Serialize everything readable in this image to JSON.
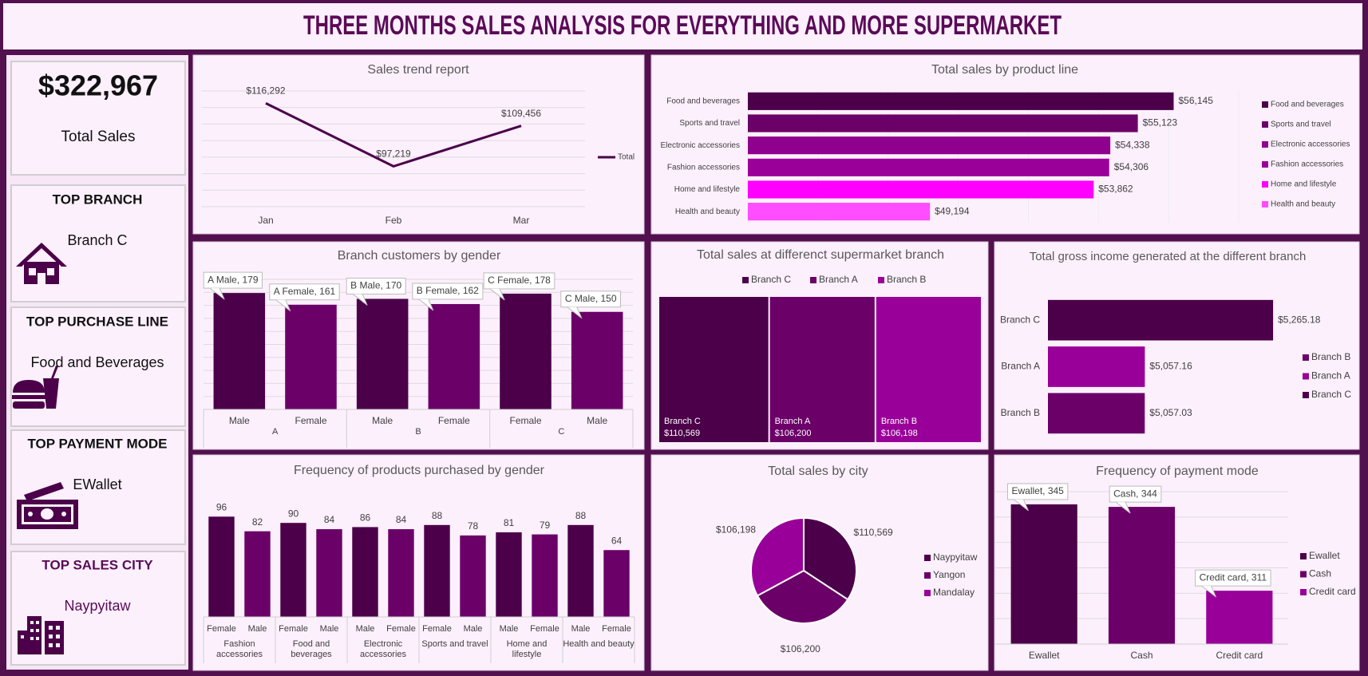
{
  "header": {
    "title": "THREE MONTHS SALES ANALYSIS FOR EVERYTHING AND MORE SUPERMARKET"
  },
  "kpis": [
    {
      "title": "$322,967",
      "text": "Total Sales"
    },
    {
      "title": "TOP BRANCH",
      "text": "Branch C"
    },
    {
      "title": "TOP PURCHASE LINE",
      "text": "Food and Beverages"
    },
    {
      "title": "TOP PAYMENT MODE",
      "text": "EWallet"
    },
    {
      "title": "TOP SALES CITY",
      "text": "Naypyitaw"
    }
  ],
  "chart_data": [
    {
      "type": "line",
      "title": "Sales trend report",
      "categories": [
        "Jan",
        "Feb",
        "Mar"
      ],
      "series": [
        {
          "name": "Total",
          "color": "#4b0049",
          "values": [
            116292,
            97219,
            109456
          ],
          "value_labels": [
            "$116,292",
            "$97,219",
            "$109,456"
          ]
        }
      ],
      "ylim": [
        85000,
        120000
      ],
      "yticks": [
        85000,
        90000,
        95000,
        100000,
        105000,
        110000,
        115000,
        120000
      ],
      "grid": true,
      "legend": "right"
    },
    {
      "type": "barh",
      "title": "Total sales by product line",
      "categories": [
        "Food and beverages",
        "Sports and travel",
        "Electronic accessories",
        "Fashion accessories",
        "Home and lifestyle",
        "Health and beauty"
      ],
      "values": [
        56145,
        55123,
        54338,
        54306,
        53862,
        49194
      ],
      "value_labels": [
        "$56,145",
        "$55,123",
        "$54,338",
        "$54,306",
        "$53,862",
        "$49,194"
      ],
      "colors": [
        "#4b0049",
        "#6b0068",
        "#90008f",
        "#9a0099",
        "#ff00ff",
        "#ff4dff"
      ],
      "xlim": [
        44000,
        58000
      ],
      "xticks": [
        44000,
        46000,
        48000,
        50000,
        52000,
        54000,
        56000,
        58000
      ],
      "grid": true,
      "legend": "right"
    },
    {
      "type": "bar",
      "title": "Branch customers by gender",
      "categories": [
        "Male",
        "Female",
        "Male",
        "Female",
        "Female",
        "Male"
      ],
      "groups": [
        "A",
        "B",
        "C"
      ],
      "values": [
        179,
        161,
        170,
        162,
        178,
        150
      ],
      "value_labels": [
        "A Male, 179",
        "A Female, 161",
        "B Male, 170",
        "B Female, 162",
        "C Female, 178",
        "C Male, 150"
      ],
      "colors": [
        "#4b0049",
        "#6b0068",
        "#4b0049",
        "#6b0068",
        "#4b0049",
        "#6b0068"
      ],
      "ylim": [
        0,
        200
      ],
      "yticks": [
        0,
        20,
        40,
        60,
        80,
        100,
        120,
        140,
        160,
        180,
        200
      ],
      "grid": true
    },
    {
      "type": "treemap",
      "title": "Total sales at differenct supermarket branch",
      "series": [
        {
          "name": "Branch C",
          "color": "#4b0049",
          "values": [
            110569
          ],
          "value_labels": [
            "$110,569"
          ]
        },
        {
          "name": "Branch A",
          "color": "#6b0068",
          "values": [
            106200
          ],
          "value_labels": [
            "$106,200"
          ]
        },
        {
          "name": "Branch B",
          "color": "#990099",
          "values": [
            106198
          ],
          "value_labels": [
            "$106,198"
          ]
        }
      ],
      "legend": "top"
    },
    {
      "type": "barh",
      "title": "Total gross income generated at the different branch",
      "categories": [
        "Branch C",
        "Branch A",
        "Branch B"
      ],
      "values": [
        5265.18,
        5057.16,
        5057.03
      ],
      "value_labels": [
        "$5,265.18",
        "$5,057.16",
        "$5,057.03"
      ],
      "colors": [
        "#4b0049",
        "#990099",
        "#6b0068"
      ],
      "xlim": [
        4900,
        5300
      ],
      "legend": "right",
      "legend_order": "reversed"
    },
    {
      "type": "bar",
      "title": "Frequency of products purchased by gender",
      "categories": [
        "Female",
        "Male",
        "Female",
        "Male",
        "Male",
        "Female",
        "Female",
        "Male",
        "Male",
        "Female",
        "Male",
        "Female"
      ],
      "groups": [
        "Fashion accessories",
        "Food and beverages",
        "Electronic accessories",
        "Sports and travel",
        "Home and lifestyle",
        "Health and beauty"
      ],
      "values": [
        96,
        82,
        90,
        84,
        86,
        84,
        88,
        78,
        81,
        79,
        88,
        64
      ],
      "colors": [
        "#4b0049",
        "#6b0068",
        "#4b0049",
        "#6b0068",
        "#4b0049",
        "#6b0068",
        "#4b0049",
        "#6b0068",
        "#4b0049",
        "#6b0068",
        "#4b0049",
        "#6b0068"
      ],
      "ylim": [
        0,
        110
      ]
    },
    {
      "type": "pie",
      "title": "Total sales by city",
      "categories": [
        "Naypyitaw",
        "Yangon",
        "Mandalay"
      ],
      "values": [
        110569,
        106200,
        106198
      ],
      "value_labels": [
        "$110,569",
        "$106,200",
        "$106,198"
      ],
      "colors": [
        "#4b0049",
        "#6b0068",
        "#990099"
      ],
      "legend": "right"
    },
    {
      "type": "bar",
      "title": "Frequency of payment mode",
      "categories": [
        "Ewallet",
        "Cash",
        "Credit card"
      ],
      "values": [
        345,
        344,
        311
      ],
      "value_labels": [
        "Ewallet, 345",
        "Cash, 344",
        "Credit card, 311"
      ],
      "colors": [
        "#4b0049",
        "#6b0068",
        "#990099"
      ],
      "ylim": [
        290,
        350
      ],
      "yticks": [
        290,
        300,
        310,
        320,
        330,
        340,
        350
      ],
      "grid": true,
      "legend": "right"
    }
  ]
}
